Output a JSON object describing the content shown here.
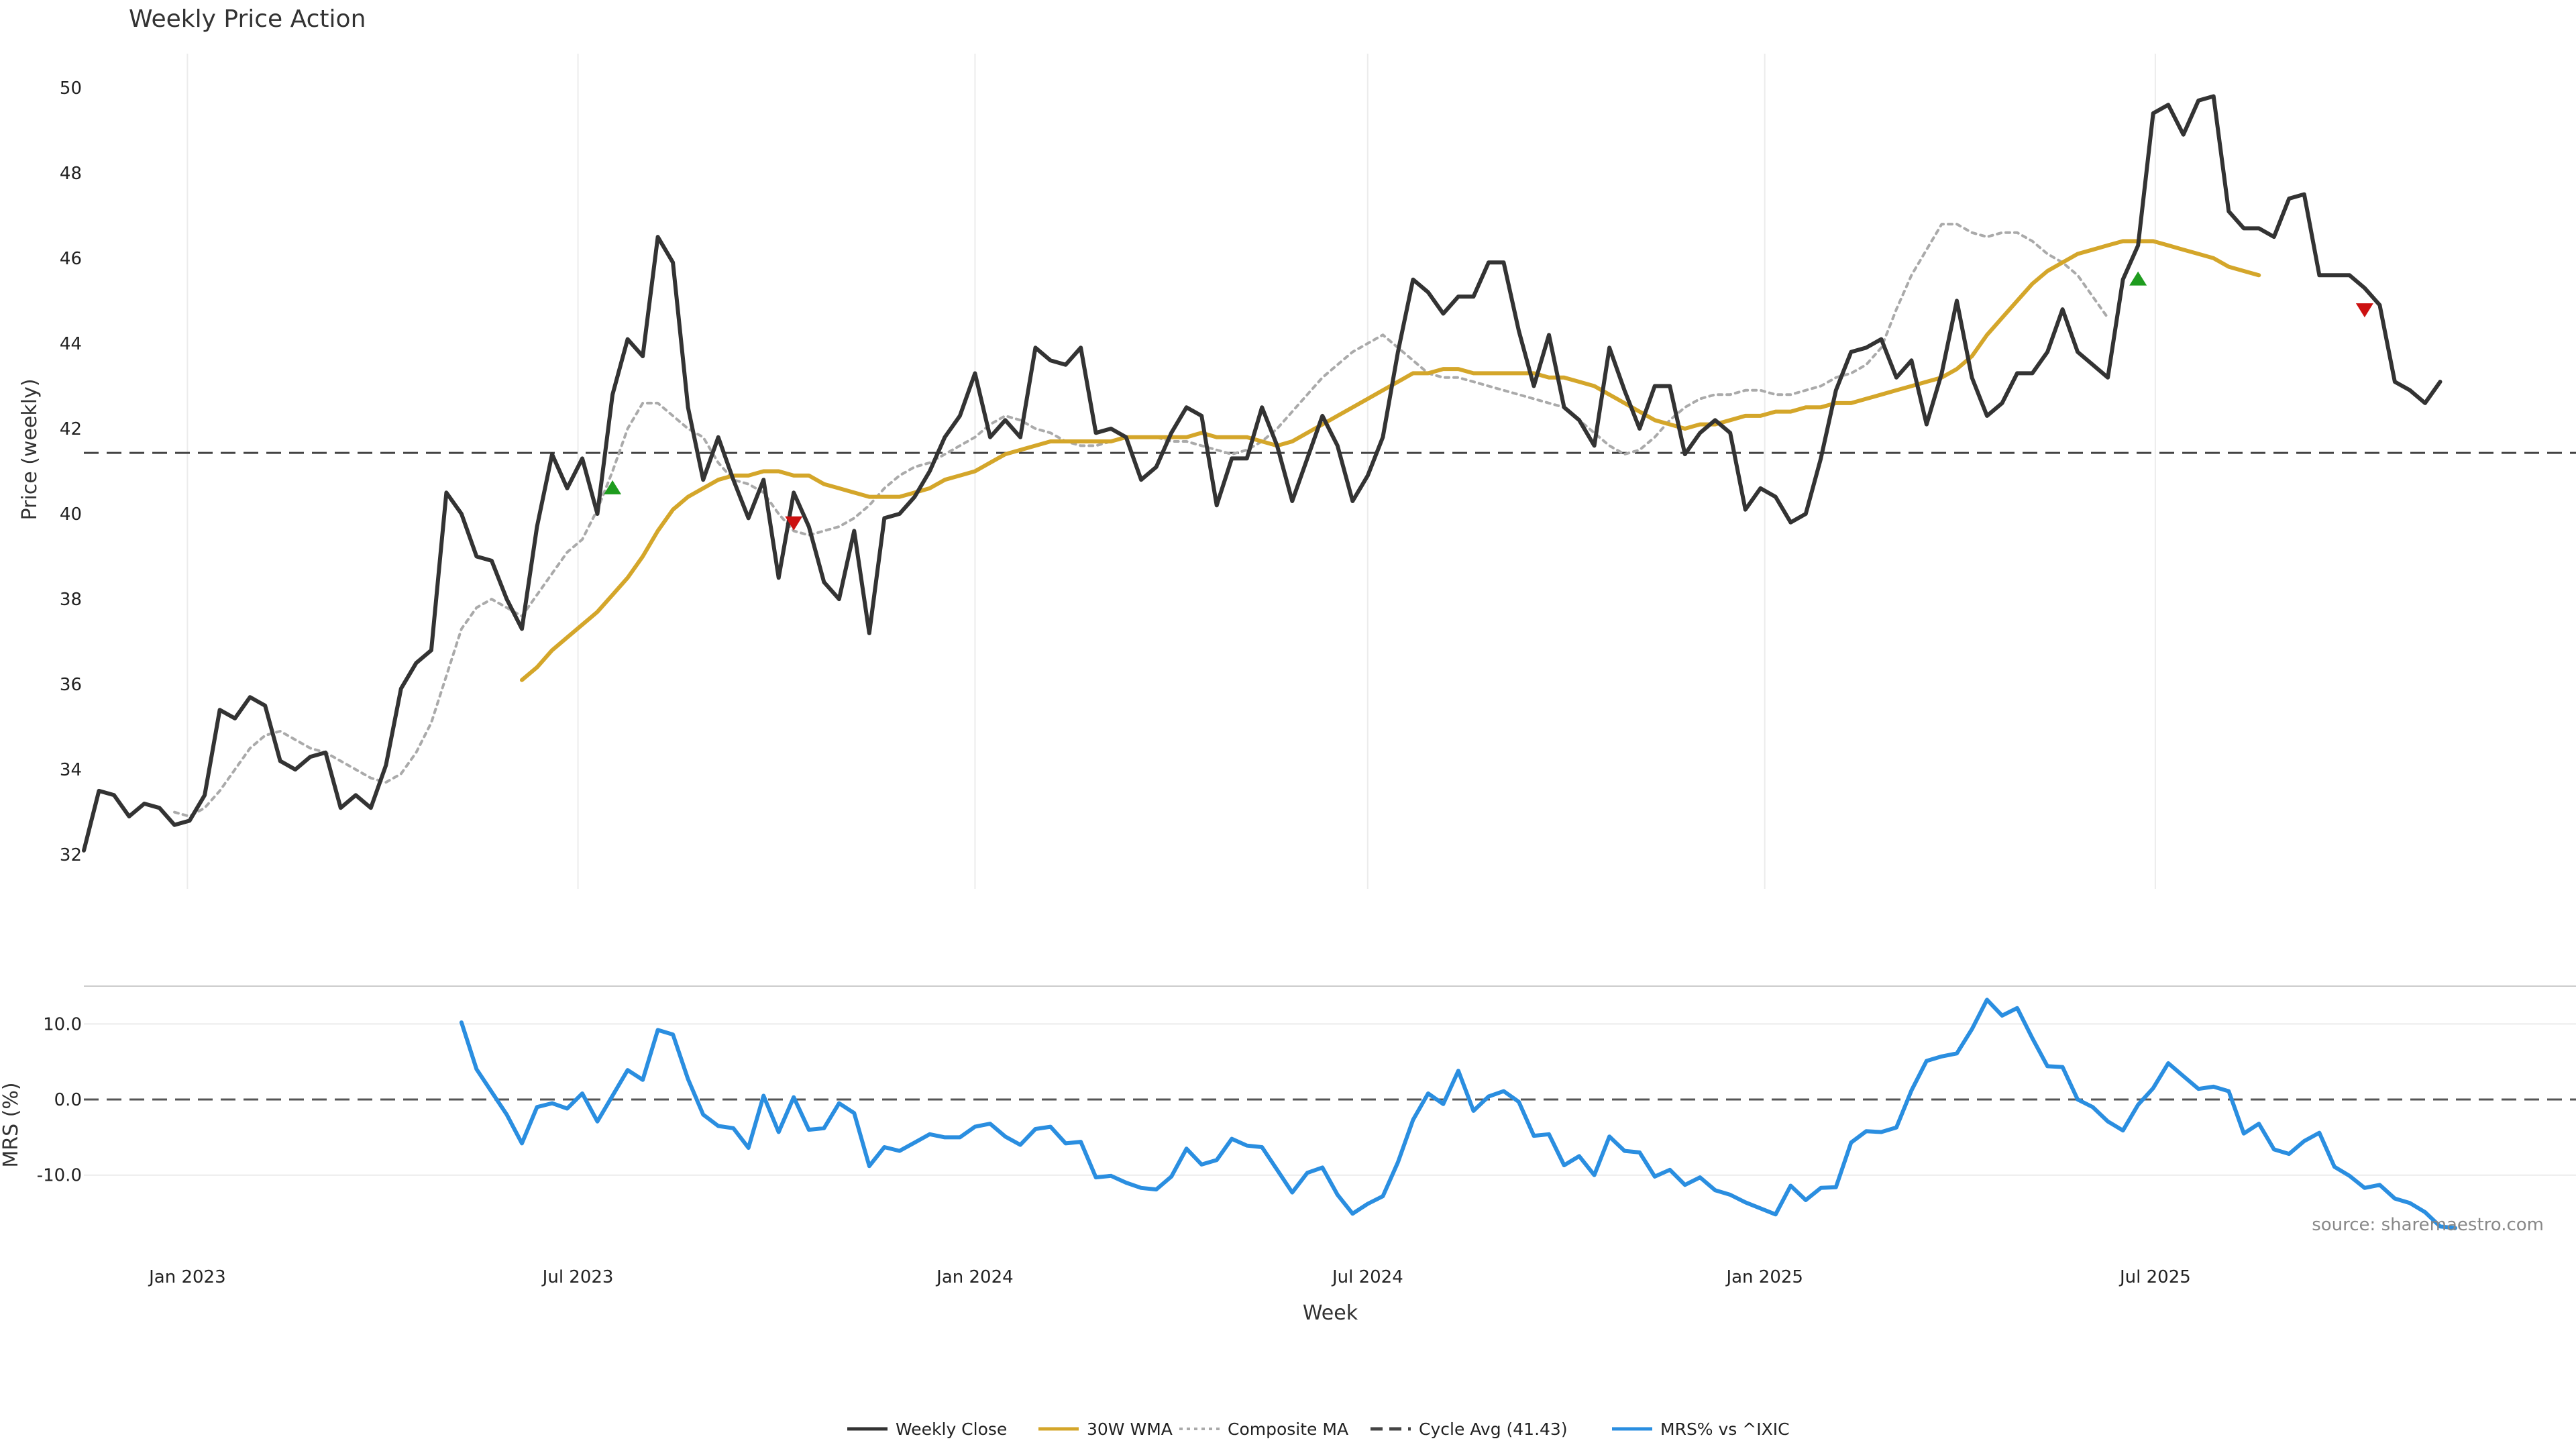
{
  "chart_data": [
    {
      "type": "line",
      "title": "Weekly Price Action",
      "ylabel": "Price (weekly)",
      "ylim": [
        31.2,
        50.8
      ],
      "yticks": [
        32,
        34,
        36,
        38,
        40,
        42,
        44,
        46,
        48,
        50
      ],
      "grid": "vertical",
      "reference_line": {
        "name": "Cycle Avg (41.43)",
        "value": 41.43,
        "color": "#444444"
      },
      "markers": [
        {
          "type": "buy",
          "date": "2023-07-17",
          "value": 40.6,
          "color": "#1e9c1e"
        },
        {
          "type": "sell",
          "date": "2023-10-09",
          "value": 39.8,
          "color": "#cc1111"
        },
        {
          "type": "buy",
          "date": "2025-06-23",
          "value": 45.5,
          "color": "#1e9c1e"
        },
        {
          "type": "sell",
          "date": "2025-10-06",
          "value": 44.8,
          "color": "#cc1111"
        }
      ],
      "series": [
        {
          "name": "Weekly Close",
          "color": "#333333",
          "start": "2022-11-14",
          "values": [
            32.1,
            33.5,
            33.4,
            32.9,
            33.2,
            33.1,
            32.7,
            32.8,
            33.4,
            35.4,
            35.2,
            35.7,
            35.5,
            34.2,
            34.0,
            34.3,
            34.4,
            33.1,
            33.4,
            33.1,
            34.1,
            35.9,
            36.5,
            36.8,
            40.5,
            40.0,
            39.0,
            38.9,
            38.0,
            37.3,
            39.7,
            41.4,
            40.6,
            41.3,
            40.0,
            42.8,
            44.1,
            43.7,
            46.5,
            45.9,
            42.5,
            40.8,
            41.8,
            40.8,
            39.9,
            40.8,
            38.5,
            40.5,
            39.7,
            38.4,
            38.0,
            39.6,
            37.2,
            39.9,
            40.0,
            40.4,
            41.0,
            41.8,
            42.3,
            43.3,
            41.8,
            42.2,
            41.8,
            43.9,
            43.6,
            43.5,
            43.9,
            41.9,
            42.0,
            41.8,
            40.8,
            41.1,
            41.9,
            42.5,
            42.3,
            40.2,
            41.3,
            41.3,
            42.5,
            41.6,
            40.3,
            41.3,
            42.3,
            41.6,
            40.3,
            40.9,
            41.8,
            43.8,
            45.5,
            45.2,
            44.7,
            45.1,
            45.1,
            45.9,
            45.9,
            44.3,
            43.0,
            44.2,
            42.5,
            42.2,
            41.6,
            43.9,
            42.9,
            42.0,
            43.0,
            43.0,
            41.4,
            41.9,
            42.2,
            41.9,
            40.1,
            40.6,
            40.4,
            39.8,
            40.0,
            41.3,
            42.9,
            43.8,
            43.9,
            44.1,
            43.2,
            43.6,
            42.1,
            43.3,
            45.0,
            43.2,
            42.3,
            42.6,
            43.3,
            43.3,
            43.8,
            44.8,
            43.8,
            43.5,
            43.2,
            45.5,
            46.3,
            49.4,
            49.6,
            48.9,
            49.7,
            49.8,
            47.1,
            46.7,
            46.7,
            46.5,
            47.4,
            47.5,
            45.6,
            45.6,
            45.6,
            45.3,
            44.9,
            43.1,
            42.9,
            42.6,
            43.1
          ]
        },
        {
          "name": "30W WMA",
          "color": "#d4a62a",
          "start": "2023-06-05",
          "values": [
            36.1,
            36.4,
            36.8,
            37.1,
            37.4,
            37.7,
            38.1,
            38.5,
            39.0,
            39.6,
            40.1,
            40.4,
            40.6,
            40.8,
            40.9,
            40.9,
            41.0,
            41.0,
            40.9,
            40.9,
            40.7,
            40.6,
            40.5,
            40.4,
            40.4,
            40.4,
            40.5,
            40.6,
            40.8,
            40.9,
            41.0,
            41.2,
            41.4,
            41.5,
            41.6,
            41.7,
            41.7,
            41.7,
            41.7,
            41.7,
            41.8,
            41.8,
            41.8,
            41.8,
            41.8,
            41.9,
            41.8,
            41.8,
            41.8,
            41.7,
            41.6,
            41.7,
            41.9,
            42.1,
            42.3,
            42.5,
            42.7,
            42.9,
            43.1,
            43.3,
            43.3,
            43.4,
            43.4,
            43.3,
            43.3,
            43.3,
            43.3,
            43.3,
            43.2,
            43.2,
            43.1,
            43.0,
            42.8,
            42.6,
            42.4,
            42.2,
            42.1,
            42.0,
            42.1,
            42.1,
            42.2,
            42.3,
            42.3,
            42.4,
            42.4,
            42.5,
            42.5,
            42.6,
            42.6,
            42.7,
            42.8,
            42.9,
            43.0,
            43.1,
            43.2,
            43.4,
            43.7,
            44.2,
            44.6,
            45.0,
            45.4,
            45.7,
            45.9,
            46.1,
            46.2,
            46.3,
            46.4,
            46.4,
            46.4,
            46.3,
            46.2,
            46.1,
            46.0,
            45.8,
            45.7,
            45.6
          ]
        },
        {
          "name": "Composite MA",
          "color": "#aaaaaa",
          "dashed": true,
          "start": "2022-12-26",
          "values": [
            33.0,
            32.9,
            33.1,
            33.5,
            34.0,
            34.5,
            34.8,
            34.9,
            34.7,
            34.5,
            34.4,
            34.2,
            34.0,
            33.8,
            33.7,
            33.9,
            34.4,
            35.1,
            36.2,
            37.3,
            37.8,
            38.0,
            37.8,
            37.6,
            38.1,
            38.6,
            39.1,
            39.4,
            40.1,
            41.0,
            42.0,
            42.6,
            42.6,
            42.3,
            42.0,
            41.8,
            41.2,
            40.8,
            40.7,
            40.5,
            40.0,
            39.6,
            39.5,
            39.6,
            39.7,
            39.9,
            40.2,
            40.6,
            40.9,
            41.1,
            41.2,
            41.4,
            41.6,
            41.8,
            42.1,
            42.3,
            42.2,
            42.0,
            41.9,
            41.7,
            41.6,
            41.6,
            41.7,
            41.8,
            41.8,
            41.8,
            41.7,
            41.7,
            41.6,
            41.5,
            41.4,
            41.5,
            41.7,
            42.0,
            42.4,
            42.8,
            43.2,
            43.5,
            43.8,
            44.0,
            44.2,
            43.9,
            43.6,
            43.3,
            43.2,
            43.2,
            43.1,
            43.0,
            42.9,
            42.8,
            42.7,
            42.6,
            42.5,
            42.2,
            41.9,
            41.6,
            41.4,
            41.5,
            41.8,
            42.2,
            42.5,
            42.7,
            42.8,
            42.8,
            42.9,
            42.9,
            42.8,
            42.8,
            42.9,
            43.0,
            43.2,
            43.3,
            43.5,
            43.9,
            44.8,
            45.6,
            46.2,
            46.8,
            46.8,
            46.6,
            46.5,
            46.6,
            46.6,
            46.4,
            46.1,
            45.9,
            45.6,
            45.1,
            44.6
          ]
        }
      ]
    },
    {
      "type": "line",
      "ylabel": "MRS (%)",
      "xlabel": "Week",
      "ylim": [
        -20.5,
        15.0
      ],
      "yticks": [
        "10.0",
        "0.0",
        "-10.0"
      ],
      "ytick_values": [
        10,
        0,
        -10
      ],
      "xticks": [
        "Jan 2023",
        "Jul 2023",
        "Jan 2024",
        "Jul 2024",
        "Jan 2025",
        "Jul 2025"
      ],
      "xtick_dates": [
        "2023-01-01",
        "2023-07-01",
        "2024-01-01",
        "2024-07-01",
        "2025-01-01",
        "2025-07-01"
      ],
      "xlim": [
        "2022-11-14",
        "2025-11-17"
      ],
      "reference_line": {
        "value": 0,
        "color": "#555555"
      },
      "series": [
        {
          "name": "MRS% vs ^IXIC",
          "color": "#2a8ee0",
          "start": "2023-05-08",
          "values": [
            10.2,
            4.0,
            1.0,
            -2.0,
            -5.8,
            -1.0,
            -0.5,
            -1.2,
            0.8,
            -2.9,
            0.5,
            3.9,
            2.6,
            9.2,
            8.6,
            2.7,
            -2.0,
            -3.5,
            -3.8,
            -6.4,
            0.5,
            -4.3,
            0.3,
            -4.0,
            -3.8,
            -0.5,
            -1.8,
            -8.8,
            -6.3,
            -6.8,
            -5.7,
            -4.6,
            -5.0,
            -5.0,
            -3.6,
            -3.2,
            -4.9,
            -6.0,
            -3.9,
            -3.6,
            -5.8,
            -5.6,
            -10.3,
            -10.1,
            -11.0,
            -11.7,
            -11.9,
            -10.2,
            -6.5,
            -8.6,
            -8.0,
            -5.2,
            -6.1,
            -6.3,
            -9.3,
            -12.3,
            -9.7,
            -9.0,
            -12.6,
            -15.1,
            -13.8,
            -12.8,
            -8.3,
            -2.7,
            0.8,
            -0.6,
            3.8,
            -1.5,
            0.4,
            1.1,
            -0.3,
            -4.8,
            -4.6,
            -8.7,
            -7.5,
            -10.0,
            -4.9,
            -6.8,
            -7.0,
            -10.2,
            -9.3,
            -11.3,
            -10.3,
            -12.0,
            -12.6,
            -13.6,
            -14.4,
            -15.2,
            -11.4,
            -13.3,
            -11.7,
            -11.6,
            -5.7,
            -4.2,
            -4.3,
            -3.7,
            1.2,
            5.1,
            5.7,
            6.1,
            9.3,
            13.2,
            11.1,
            12.1,
            8.1,
            4.4,
            4.3,
            0.0,
            -1.0,
            -2.9,
            -4.1,
            -0.7,
            1.5,
            4.8,
            3.1,
            1.4,
            1.7,
            1.1,
            -4.5,
            -3.2,
            -6.6,
            -7.2,
            -5.5,
            -4.4,
            -8.9,
            -10.1,
            -11.7,
            -11.3,
            -13.1,
            -13.7,
            -14.9,
            -16.8,
            -17.0
          ]
        }
      ]
    }
  ],
  "source": "source: sharemaestro.com",
  "legend": {
    "placement": "bottom-center",
    "items": [
      {
        "label": "Weekly Close",
        "color": "#333333",
        "style": "solid"
      },
      {
        "label": "30W WMA",
        "color": "#d4a62a",
        "style": "solid"
      },
      {
        "label": "Composite MA",
        "color": "#aaaaaa",
        "style": "dotted"
      },
      {
        "label": "Cycle Avg (41.43)",
        "color": "#444444",
        "style": "dashed"
      },
      {
        "label": "MRS% vs ^IXIC",
        "color": "#2a8ee0",
        "style": "solid"
      }
    ]
  }
}
